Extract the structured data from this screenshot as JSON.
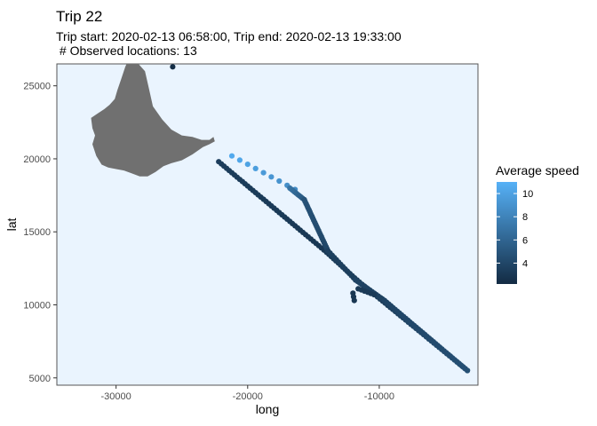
{
  "header": {
    "title": "Trip 22",
    "subtitle_line1": "Trip start: 2020-02-13 06:58:00, Trip end: 2020-02-13 19:33:00",
    "subtitle_line2": " # Observed locations: 13"
  },
  "colors": {
    "panel_bg": "#eaf4fe",
    "panel_border": "#555555",
    "land": "#707070",
    "speed_low": "#132b43",
    "speed_high": "#56b1f7"
  },
  "chart_data": {
    "type": "scatter",
    "title": "Trip 22",
    "xlabel": "long",
    "ylabel": "lat",
    "xlim": [
      -34500,
      -2500
    ],
    "ylim": [
      4500,
      26500
    ],
    "x_ticks": [
      -30000,
      -20000,
      -10000
    ],
    "x_tick_labels": [
      "-30000",
      "-20000",
      "-10000"
    ],
    "y_ticks": [
      5000,
      10000,
      15000,
      20000,
      25000
    ],
    "y_tick_labels": [
      "5000",
      "10000",
      "15000",
      "20000",
      "25000"
    ],
    "grid": false,
    "color_scale": {
      "title": "Average speed",
      "min": 2.2,
      "max": 11.0,
      "ticks": [
        4,
        6,
        8,
        10
      ],
      "tick_labels": [
        "4",
        "6",
        "8",
        "10"
      ],
      "legend_position": "right"
    },
    "segments": [
      {
        "from": [
          -22200,
          19800
        ],
        "to": [
          -14000,
          13600
        ],
        "n": 42,
        "speed": [
          3.4,
          3.0
        ]
      },
      {
        "from": [
          -14000,
          13600
        ],
        "to": [
          -11700,
          11700
        ],
        "n": 14,
        "speed": [
          3.2,
          3.0
        ]
      },
      {
        "from": [
          -11700,
          11700
        ],
        "to": [
          -3300,
          5500
        ],
        "n": 44,
        "speed": [
          3.0,
          4.6
        ]
      },
      {
        "from": [
          -21200,
          20200
        ],
        "to": [
          -16400,
          17900
        ],
        "n": 9,
        "speed": [
          10.5,
          8.5
        ]
      },
      {
        "from": [
          -16800,
          18000
        ],
        "to": [
          -15700,
          17200
        ],
        "n": 10,
        "speed": [
          7.0,
          5.2
        ]
      },
      {
        "from": [
          -15700,
          17200
        ],
        "to": [
          -13900,
          13700
        ],
        "n": 26,
        "speed": [
          4.8,
          4.0
        ]
      },
      {
        "from": [
          -13900,
          13700
        ],
        "to": [
          -11800,
          11700
        ],
        "n": 14,
        "speed": [
          3.6,
          3.4
        ]
      },
      {
        "from": [
          -11800,
          11700
        ],
        "to": [
          -9600,
          10300
        ],
        "n": 15,
        "speed": [
          3.8,
          3.6
        ]
      },
      {
        "from": [
          -9600,
          10300
        ],
        "to": [
          -3300,
          5500
        ],
        "n": 40,
        "speed": [
          3.8,
          4.6
        ]
      },
      {
        "from": [
          -11600,
          11100
        ],
        "to": [
          -10400,
          10700
        ],
        "n": 6,
        "speed": [
          3.2,
          3.2
        ]
      },
      {
        "from": [
          -12000,
          10800
        ],
        "to": [
          -11900,
          10300
        ],
        "n": 3,
        "speed": [
          3.0,
          3.0
        ]
      }
    ],
    "points": [
      {
        "x": -25700,
        "y": 26300,
        "speed": 2.4
      }
    ],
    "land_polygons": [
      [
        [
          -29100,
          26700
        ],
        [
          -28400,
          26600
        ],
        [
          -27800,
          26000
        ],
        [
          -27500,
          24800
        ],
        [
          -27200,
          23600
        ],
        [
          -26500,
          22700
        ],
        [
          -25800,
          22000
        ],
        [
          -25000,
          21600
        ],
        [
          -24200,
          21500
        ],
        [
          -23500,
          21300
        ],
        [
          -22900,
          21300
        ],
        [
          -22600,
          21500
        ],
        [
          -22500,
          21200
        ],
        [
          -22900,
          21000
        ],
        [
          -23400,
          20800
        ],
        [
          -24200,
          20300
        ],
        [
          -25000,
          19900
        ],
        [
          -25800,
          19700
        ],
        [
          -26400,
          19500
        ],
        [
          -27000,
          19100
        ],
        [
          -27600,
          18800
        ],
        [
          -28200,
          18800
        ],
        [
          -28800,
          19000
        ],
        [
          -29400,
          19200
        ],
        [
          -30000,
          19300
        ],
        [
          -30600,
          19400
        ],
        [
          -31100,
          19600
        ],
        [
          -31500,
          20200
        ],
        [
          -31800,
          21000
        ],
        [
          -31600,
          21600
        ],
        [
          -31800,
          22100
        ],
        [
          -31900,
          22800
        ],
        [
          -31400,
          23100
        ],
        [
          -30900,
          23400
        ],
        [
          -30500,
          23700
        ],
        [
          -30100,
          24100
        ],
        [
          -29900,
          24700
        ],
        [
          -29600,
          25500
        ],
        [
          -29300,
          26300
        ]
      ]
    ]
  }
}
